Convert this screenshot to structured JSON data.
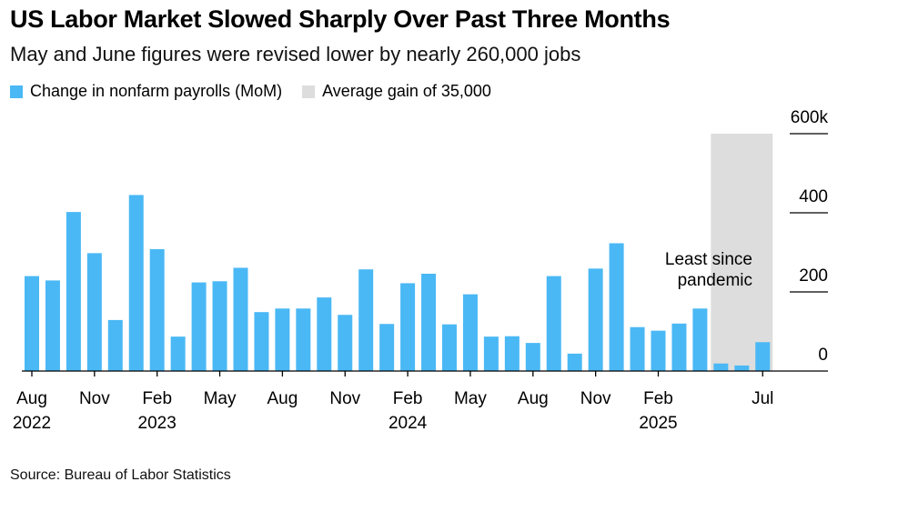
{
  "title": "US Labor Market Slowed Sharply Over Past Three Months",
  "subtitle": "May and June figures were revised lower by nearly 260,000 jobs",
  "source": "Source: Bureau of Labor Statistics",
  "colors": {
    "bar": "#4ab8f5",
    "band": "#dddddd",
    "axis": "#000000"
  },
  "chart_data": {
    "type": "bar",
    "series_name": "Change in nonfarm payrolls (MoM)",
    "band_label": "Average gain of 35,000",
    "annotation": [
      "Least since",
      "pandemic"
    ],
    "ylim": [
      0,
      600
    ],
    "yticks": [
      {
        "value": 0,
        "label": "0"
      },
      {
        "value": 200,
        "label": "200"
      },
      {
        "value": 400,
        "label": "400"
      },
      {
        "value": 600,
        "label": "600k"
      }
    ],
    "months": [
      "Aug 2022",
      "Sep 2022",
      "Oct 2022",
      "Nov 2022",
      "Dec 2022",
      "Jan 2023",
      "Feb 2023",
      "Mar 2023",
      "Apr 2023",
      "May 2023",
      "Jun 2023",
      "Jul 2023",
      "Aug 2023",
      "Sep 2023",
      "Oct 2023",
      "Nov 2023",
      "Dec 2023",
      "Jan 2024",
      "Feb 2024",
      "Mar 2024",
      "Apr 2024",
      "May 2024",
      "Jun 2024",
      "Jul 2024",
      "Aug 2024",
      "Sep 2024",
      "Oct 2024",
      "Nov 2024",
      "Dec 2024",
      "Jan 2025",
      "Feb 2025",
      "Mar 2025",
      "Apr 2025",
      "May 2025",
      "Jun 2025",
      "Jul 2025"
    ],
    "values": [
      240,
      229,
      402,
      298,
      129,
      445,
      308,
      87,
      224,
      227,
      261,
      149,
      158,
      158,
      186,
      142,
      257,
      119,
      222,
      246,
      118,
      194,
      87,
      88,
      71,
      240,
      44,
      259,
      323,
      111,
      102,
      120,
      158,
      19,
      14,
      73
    ],
    "band_range": [
      33,
      35
    ],
    "xticks": [
      {
        "index": 0,
        "label": "Aug",
        "year": "2022"
      },
      {
        "index": 3,
        "label": "Nov",
        "year": ""
      },
      {
        "index": 6,
        "label": "Feb",
        "year": "2023"
      },
      {
        "index": 9,
        "label": "May",
        "year": ""
      },
      {
        "index": 12,
        "label": "Aug",
        "year": ""
      },
      {
        "index": 15,
        "label": "Nov",
        "year": ""
      },
      {
        "index": 18,
        "label": "Feb",
        "year": "2024"
      },
      {
        "index": 21,
        "label": "May",
        "year": ""
      },
      {
        "index": 24,
        "label": "Aug",
        "year": ""
      },
      {
        "index": 27,
        "label": "Nov",
        "year": ""
      },
      {
        "index": 30,
        "label": "Feb",
        "year": "2025"
      },
      {
        "index": 35,
        "label": "Jul",
        "year": ""
      }
    ]
  }
}
